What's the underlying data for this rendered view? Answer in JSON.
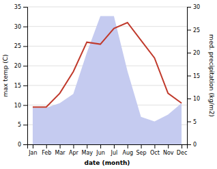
{
  "chart_data": {
    "type": "line",
    "xlabel": "date (month)",
    "ylabel": "max temp (C)",
    "y2label": "med. precipitation (kg/m2)",
    "categories": [
      "Jan",
      "Feb",
      "Mar",
      "Apr",
      "May",
      "Jun",
      "Jul",
      "Aug",
      "Sep",
      "Oct",
      "Nov",
      "Dec"
    ],
    "series": [
      {
        "type": "area",
        "axis": "y2",
        "color": "#c5cbf0",
        "values": [
          8.0,
          8.0,
          9.0,
          11.0,
          20.0,
          28.0,
          28.0,
          16.0,
          6.0,
          5.0,
          6.5,
          9.0
        ]
      },
      {
        "type": "line",
        "color": "#c0392b",
        "values": [
          9.5,
          9.5,
          13.0,
          18.5,
          26.0,
          25.5,
          29.5,
          31.0,
          26.5,
          22.0,
          13.0,
          10.5
        ]
      }
    ],
    "ylim": [
      0,
      35
    ],
    "yticks": [
      0,
      5,
      10,
      15,
      20,
      25,
      30,
      35
    ],
    "y2lim": [
      0,
      30
    ],
    "y2ticks": [
      0,
      5,
      10,
      15,
      20,
      25,
      30
    ],
    "grid": true
  }
}
